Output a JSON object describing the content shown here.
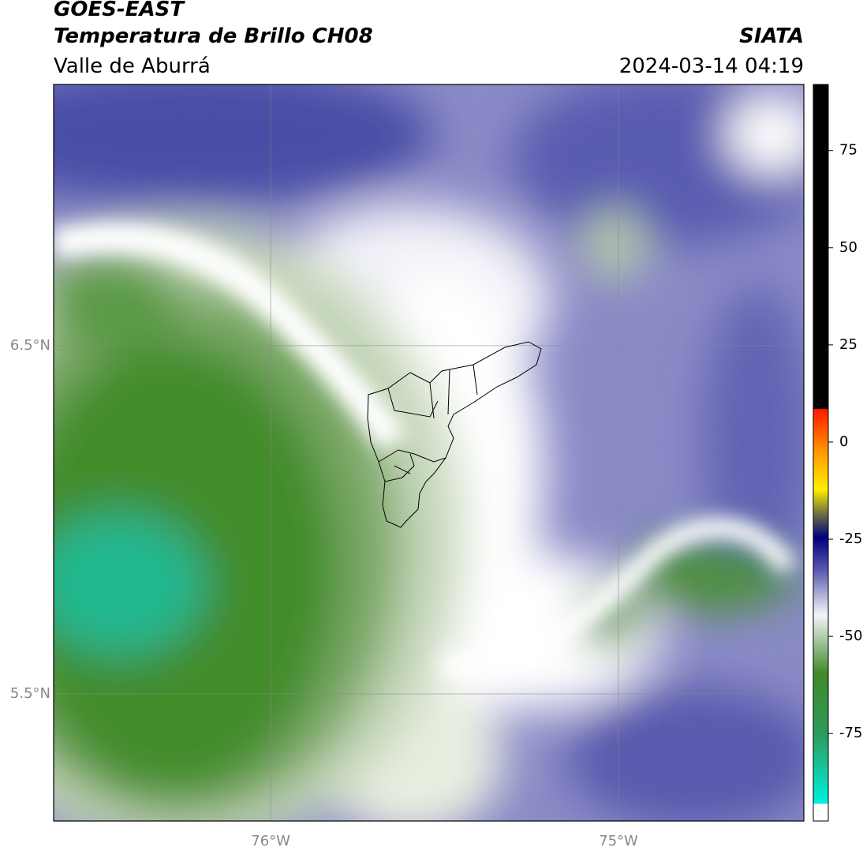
{
  "header": {
    "title": "GOES-EAST",
    "subtitle": "Temperatura de Brillo CH08",
    "region": "Valle de Aburrá",
    "source": "SIATA",
    "timestamp": "2024-03-14 04:19"
  },
  "map": {
    "xlim": [
      -76.624,
      -74.467
    ],
    "ylim": [
      5.135,
      7.25
    ],
    "yticks": [
      {
        "value": 6.5,
        "label": "6.5°N"
      },
      {
        "value": 5.5,
        "label": "5.5°N"
      }
    ],
    "xticks": [
      {
        "value": -76,
        "label": "76°W"
      },
      {
        "value": -75,
        "label": "75°W"
      }
    ]
  },
  "colorbar": {
    "lim": [
      -97.5,
      92
    ],
    "ticks": [
      75,
      50,
      25,
      0,
      -25,
      -50,
      -75
    ]
  }
}
